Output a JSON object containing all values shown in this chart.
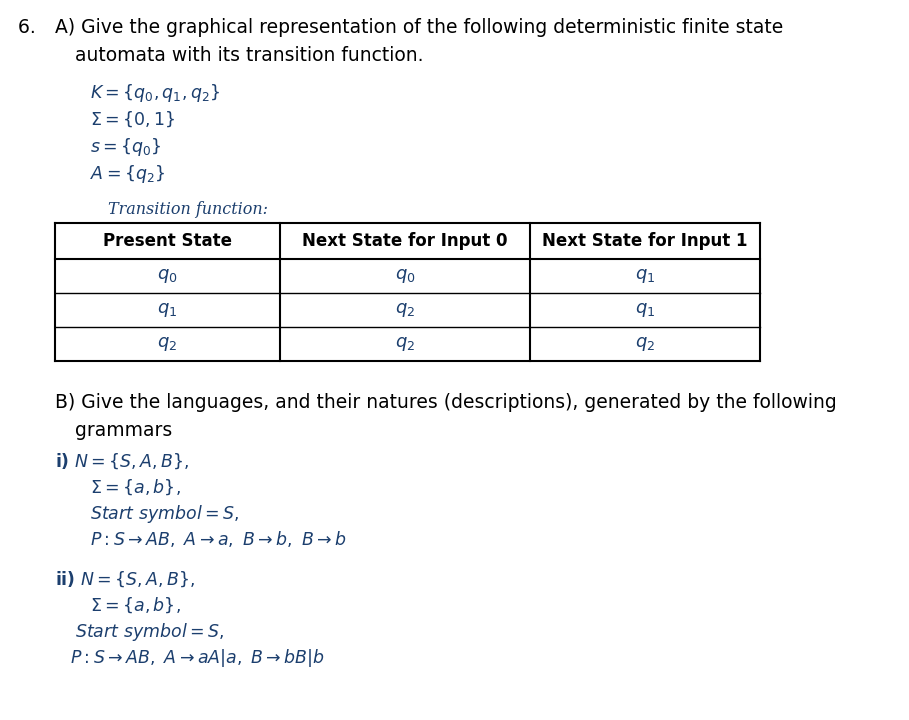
{
  "bg_color": "#ffffff",
  "text_color": "#000000",
  "blue_color": "#1c3f6e",
  "fig_width": 9.09,
  "fig_height": 7.2,
  "dpi": 100,
  "table_headers": [
    "Present State",
    "Next State for Input 0",
    "Next State for Input 1"
  ],
  "table_rows": [
    [
      "$q_0$",
      "$q_0$",
      "$q_1$"
    ],
    [
      "$q_1$",
      "$q_2$",
      "$q_1$"
    ],
    [
      "$q_2$",
      "$q_2$",
      "$q_2$"
    ]
  ]
}
